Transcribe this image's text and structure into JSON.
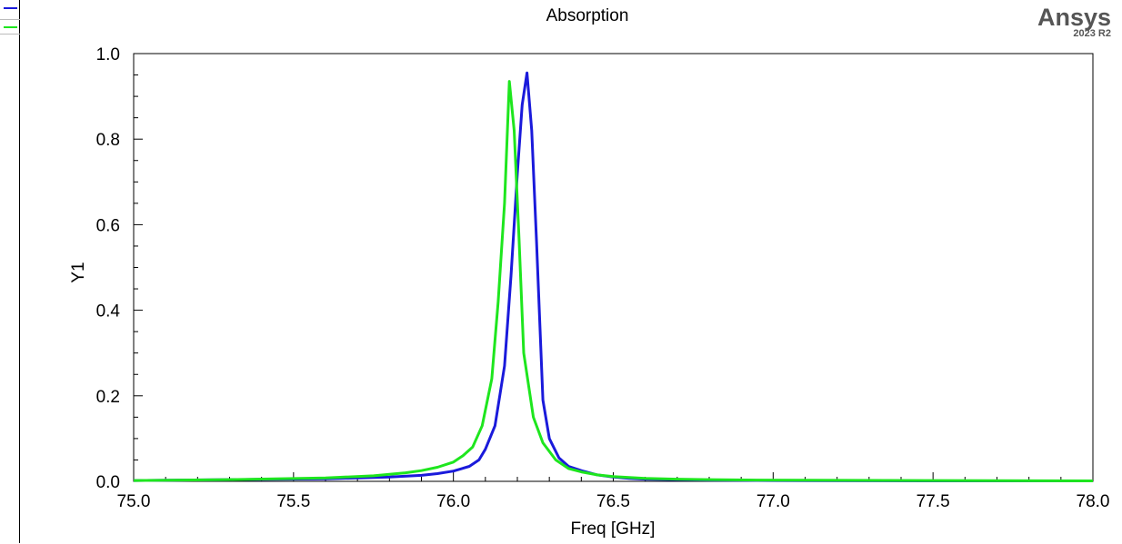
{
  "brand": {
    "name": "Ansys",
    "version": "2023 R2"
  },
  "legend": {
    "entries": [
      {
        "color": "#1a1adb"
      },
      {
        "color": "#1ee61e"
      }
    ]
  },
  "chart_data": {
    "type": "line",
    "title": "Absorption",
    "xlabel": "Freq [GHz]",
    "ylabel": "Y1",
    "xlim": [
      75.0,
      78.0
    ],
    "ylim": [
      0.0,
      1.0
    ],
    "x_ticks": [
      "75.0",
      "75.5",
      "76.0",
      "76.5",
      "77.0",
      "77.5",
      "78.0"
    ],
    "y_ticks": [
      "0.0",
      "0.2",
      "0.4",
      "0.6",
      "0.8",
      "1.0"
    ],
    "grid": false,
    "series": [
      {
        "color": "#1a1adb",
        "x": [
          75.0,
          75.3,
          75.6,
          75.8,
          75.9,
          75.95,
          76.0,
          76.05,
          76.08,
          76.1,
          76.13,
          76.16,
          76.18,
          76.2,
          76.215,
          76.23,
          76.245,
          76.26,
          76.28,
          76.3,
          76.33,
          76.36,
          76.4,
          76.45,
          76.5,
          76.55,
          76.6,
          76.7,
          76.8,
          77.0,
          77.5,
          78.0
        ],
        "y": [
          0.002,
          0.004,
          0.006,
          0.01,
          0.014,
          0.018,
          0.024,
          0.035,
          0.05,
          0.075,
          0.13,
          0.27,
          0.48,
          0.72,
          0.88,
          0.955,
          0.82,
          0.56,
          0.19,
          0.1,
          0.055,
          0.035,
          0.025,
          0.015,
          0.01,
          0.007,
          0.005,
          0.004,
          0.003,
          0.002,
          0.001,
          0.001
        ]
      },
      {
        "color": "#1ee61e",
        "x": [
          75.0,
          75.3,
          75.6,
          75.75,
          75.85,
          75.9,
          75.95,
          76.0,
          76.03,
          76.06,
          76.09,
          76.12,
          76.14,
          76.16,
          76.175,
          76.19,
          76.205,
          76.22,
          76.25,
          76.28,
          76.32,
          76.36,
          76.4,
          76.45,
          76.5,
          76.6,
          76.7,
          76.8,
          76.95,
          77.5,
          78.0
        ],
        "y": [
          0.002,
          0.004,
          0.008,
          0.013,
          0.02,
          0.025,
          0.033,
          0.045,
          0.06,
          0.08,
          0.13,
          0.24,
          0.42,
          0.65,
          0.935,
          0.82,
          0.57,
          0.3,
          0.15,
          0.09,
          0.05,
          0.03,
          0.022,
          0.015,
          0.011,
          0.007,
          0.005,
          0.004,
          0.003,
          0.002,
          0.001
        ]
      }
    ]
  }
}
